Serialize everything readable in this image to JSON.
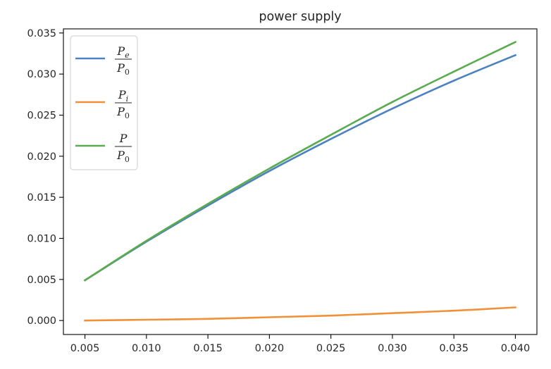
{
  "chart_data": {
    "type": "line",
    "title": "power supply",
    "xlabel": "",
    "ylabel": "",
    "xlim": [
      0.00325,
      0.04175
    ],
    "ylim": [
      -0.0017,
      0.0355
    ],
    "x_ticks": [
      "0.005",
      "0.010",
      "0.015",
      "0.020",
      "0.025",
      "0.030",
      "0.035",
      "0.040"
    ],
    "x_tick_values": [
      0.005,
      0.01,
      0.015,
      0.02,
      0.025,
      0.03,
      0.035,
      0.04
    ],
    "y_ticks": [
      "0.000",
      "0.005",
      "0.010",
      "0.015",
      "0.020",
      "0.025",
      "0.030",
      "0.035"
    ],
    "y_tick_values": [
      0.0,
      0.005,
      0.01,
      0.015,
      0.02,
      0.025,
      0.03,
      0.035
    ],
    "grid": false,
    "legend_position": "top-left",
    "series": [
      {
        "name": "Pe/P0",
        "numerator": "P",
        "numerator_sub": "e",
        "denominator": "P",
        "denominator_sub": "0",
        "color": "#4c82c0",
        "x": [
          0.005,
          0.01,
          0.015,
          0.02,
          0.025,
          0.03,
          0.035,
          0.04
        ],
        "y": [
          0.0049,
          0.0096,
          0.014,
          0.0182,
          0.0221,
          0.0258,
          0.0292,
          0.0323
        ]
      },
      {
        "name": "Pi/P0",
        "numerator": "P",
        "numerator_sub": "i",
        "denominator": "P",
        "denominator_sub": "0",
        "color": "#f0913a",
        "x": [
          0.005,
          0.01,
          0.015,
          0.02,
          0.025,
          0.03,
          0.035,
          0.04
        ],
        "y": [
          0.0,
          0.0001,
          0.0002,
          0.0004,
          0.0006,
          0.0009,
          0.0012,
          0.0016
        ]
      },
      {
        "name": "P/P0",
        "numerator": "P",
        "numerator_sub": "",
        "denominator": "P",
        "denominator_sub": "0",
        "color": "#5aab4f",
        "x": [
          0.005,
          0.01,
          0.015,
          0.02,
          0.025,
          0.03,
          0.035,
          0.04
        ],
        "y": [
          0.0049,
          0.0097,
          0.0142,
          0.0185,
          0.0226,
          0.0266,
          0.0303,
          0.0339
        ]
      }
    ]
  }
}
